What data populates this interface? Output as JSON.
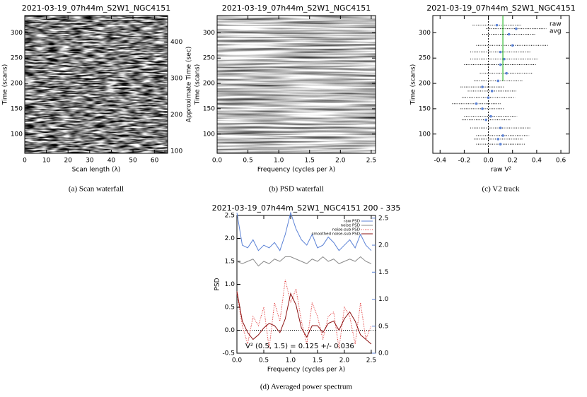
{
  "chart_data": [
    {
      "type": "heatmap",
      "title": "2021-03-19_07h44m_S2W1_NGC4151",
      "caption": "(a) Scan waterfall",
      "xlabel": "Scan length (λ)",
      "ylabel": "Time (scans)",
      "y2label": "Approximate Time (sec)",
      "xlim": [
        0,
        66
      ],
      "xticks": [
        0,
        10,
        20,
        30,
        40,
        50,
        60
      ],
      "ylim": [
        62,
        334
      ],
      "yticks": [
        100,
        150,
        200,
        250,
        300
      ],
      "y2lim": [
        94,
        473
      ],
      "y2ticks": [
        100,
        200,
        300,
        400
      ],
      "contrast": "high"
    },
    {
      "type": "heatmap",
      "title": "2021-03-19_07h44m_S2W1_NGC4151",
      "caption": "(b) PSD waterfall",
      "xlabel": "Frequency (cycles per λ)",
      "ylabel": "Time (scans)",
      "xlim": [
        0,
        2.57
      ],
      "xticks": [
        {
          "value": 0,
          "label": "0.0"
        },
        {
          "value": 0.5,
          "label": "0.5"
        },
        {
          "value": 1,
          "label": "1.0"
        },
        {
          "value": 1.5,
          "label": "1.5"
        },
        {
          "value": 2,
          "label": "2.0"
        },
        2.5
      ],
      "ylim": [
        62,
        334
      ],
      "yticks": [
        100,
        150,
        200,
        250,
        300
      ],
      "contrast": "low"
    },
    {
      "type": "scatter",
      "title": "2021-03-19_07h44m_S2W1_NGC4151",
      "caption": "(c) V2 track",
      "xlabel": "raw V²",
      "ylabel": "Time (scans)",
      "xlim": [
        -0.46,
        0.67
      ],
      "xticks": [
        -0.4,
        -0.2,
        {
          "value": 0,
          "label": "0.0"
        },
        0.2,
        0.4,
        0.6
      ],
      "ylim": [
        62,
        334
      ],
      "yticks": [
        100,
        150,
        200,
        250,
        300
      ],
      "x": [
        0.07,
        0.23,
        0.17,
        0.2,
        0.1,
        0.13,
        0.1,
        0.15,
        0.08,
        -0.05,
        0.03,
        0.0,
        -0.1,
        -0.05,
        0.02,
        -0.02,
        0.1,
        0.12,
        0.08,
        0.1
      ],
      "y": [
        315,
        308,
        297,
        275,
        262,
        248,
        237,
        220,
        205,
        193,
        185,
        172,
        160,
        150,
        135,
        128,
        112,
        97,
        90,
        80
      ],
      "xerr": [
        0.2,
        0.25,
        0.22,
        0.3,
        0.25,
        0.28,
        0.3,
        0.22,
        0.2,
        0.18,
        0.2,
        0.22,
        0.2,
        0.18,
        0.22,
        0.2,
        0.25,
        0.22,
        0.2,
        0.2
      ],
      "point_color": "#5b82d6",
      "legend_labels": [
        "raw",
        "avg"
      ],
      "legend_colors": [
        "#000000",
        "#5b82d6"
      ],
      "avg_line": {
        "x": 0.12,
        "from": 205,
        "to": 334,
        "color": "#33bb33"
      }
    },
    {
      "type": "line",
      "title": "2021-03-19_07h44m_S2W1_NGC4151   200 - 335",
      "caption": "(d) Averaged power spectrum",
      "xlabel": "Frequency (cycles per λ)",
      "ylabel": "PSD",
      "annotation": "V² (0.5, 1.5) =  0.125 +/- 0.036",
      "xlim": [
        0,
        2.58
      ],
      "xticks": [
        {
          "value": 0,
          "label": "0.0"
        },
        {
          "value": 0.5,
          "label": "0.5"
        },
        {
          "value": 1,
          "label": "1.0"
        },
        {
          "value": 1.5,
          "label": "1.5"
        },
        {
          "value": 2,
          "label": "2.0"
        },
        2.5
      ],
      "ylim": [
        -0.5,
        2.5
      ],
      "yticks": [
        -0.5,
        {
          "value": 0,
          "label": "0.0"
        },
        0.5,
        {
          "value": 1,
          "label": "1.0"
        },
        1.5,
        {
          "value": 2,
          "label": "2.0"
        },
        2.5
      ],
      "y2lim": [
        0,
        2.55
      ],
      "y2ticks": [
        {
          "value": 0,
          "label": "0.0"
        },
        0.5,
        {
          "value": 1,
          "label": "1.0"
        },
        1.5,
        {
          "value": 2,
          "label": "2.0"
        },
        2.5
      ],
      "y2color": "#5b82d6",
      "x": [
        0,
        0.1,
        0.2,
        0.3,
        0.4,
        0.5,
        0.6,
        0.7,
        0.8,
        0.9,
        1,
        1.1,
        1.2,
        1.3,
        1.4,
        1.5,
        1.6,
        1.7,
        1.8,
        1.9,
        2,
        2.1,
        2.2,
        2.3,
        2.4,
        2.5
      ],
      "series": [
        {
          "name": "raw PSD",
          "color": "#5b82d6",
          "axis": "y2",
          "values": [
            2.6,
            2.0,
            1.95,
            2.1,
            1.9,
            2.0,
            1.95,
            2.05,
            1.9,
            2.2,
            2.6,
            2.3,
            2.1,
            2.0,
            2.2,
            1.95,
            2.0,
            2.15,
            2.05,
            1.9,
            2.0,
            2.1,
            1.95,
            2.2,
            2.0,
            1.9
          ]
        },
        {
          "name": "noise PSD",
          "color": "#8a8a8a",
          "values": [
            1.5,
            1.45,
            1.5,
            1.55,
            1.4,
            1.5,
            1.45,
            1.55,
            1.5,
            1.6,
            1.6,
            1.55,
            1.5,
            1.45,
            1.55,
            1.5,
            1.6,
            1.5,
            1.55,
            1.45,
            1.5,
            1.55,
            1.5,
            1.6,
            1.5,
            1.45
          ]
        },
        {
          "name": "noise-sub PSD",
          "color": "#e03030",
          "dotted": true,
          "values": [
            0.8,
            0.1,
            -0.3,
            0.3,
            0.1,
            0.5,
            -0.4,
            0.6,
            0.2,
            1.1,
            0.6,
            0.9,
            0.2,
            -0.3,
            0.6,
            0.3,
            -0.2,
            0.3,
            0.4,
            -0.4,
            0.5,
            0.3,
            -0.3,
            0.6,
            -0.2,
            0.1
          ]
        },
        {
          "name": "smoothed noise-sub PSD",
          "color": "#8b1010",
          "values": [
            0.85,
            0.2,
            -0.05,
            -0.2,
            -0.1,
            0.05,
            0.15,
            0.1,
            -0.05,
            0.25,
            0.8,
            0.55,
            0.05,
            -0.15,
            0.1,
            0.1,
            -0.05,
            0.15,
            0.2,
            0.0,
            0.25,
            0.4,
            0.2,
            -0.1,
            -0.2,
            -0.3
          ]
        }
      ]
    }
  ]
}
